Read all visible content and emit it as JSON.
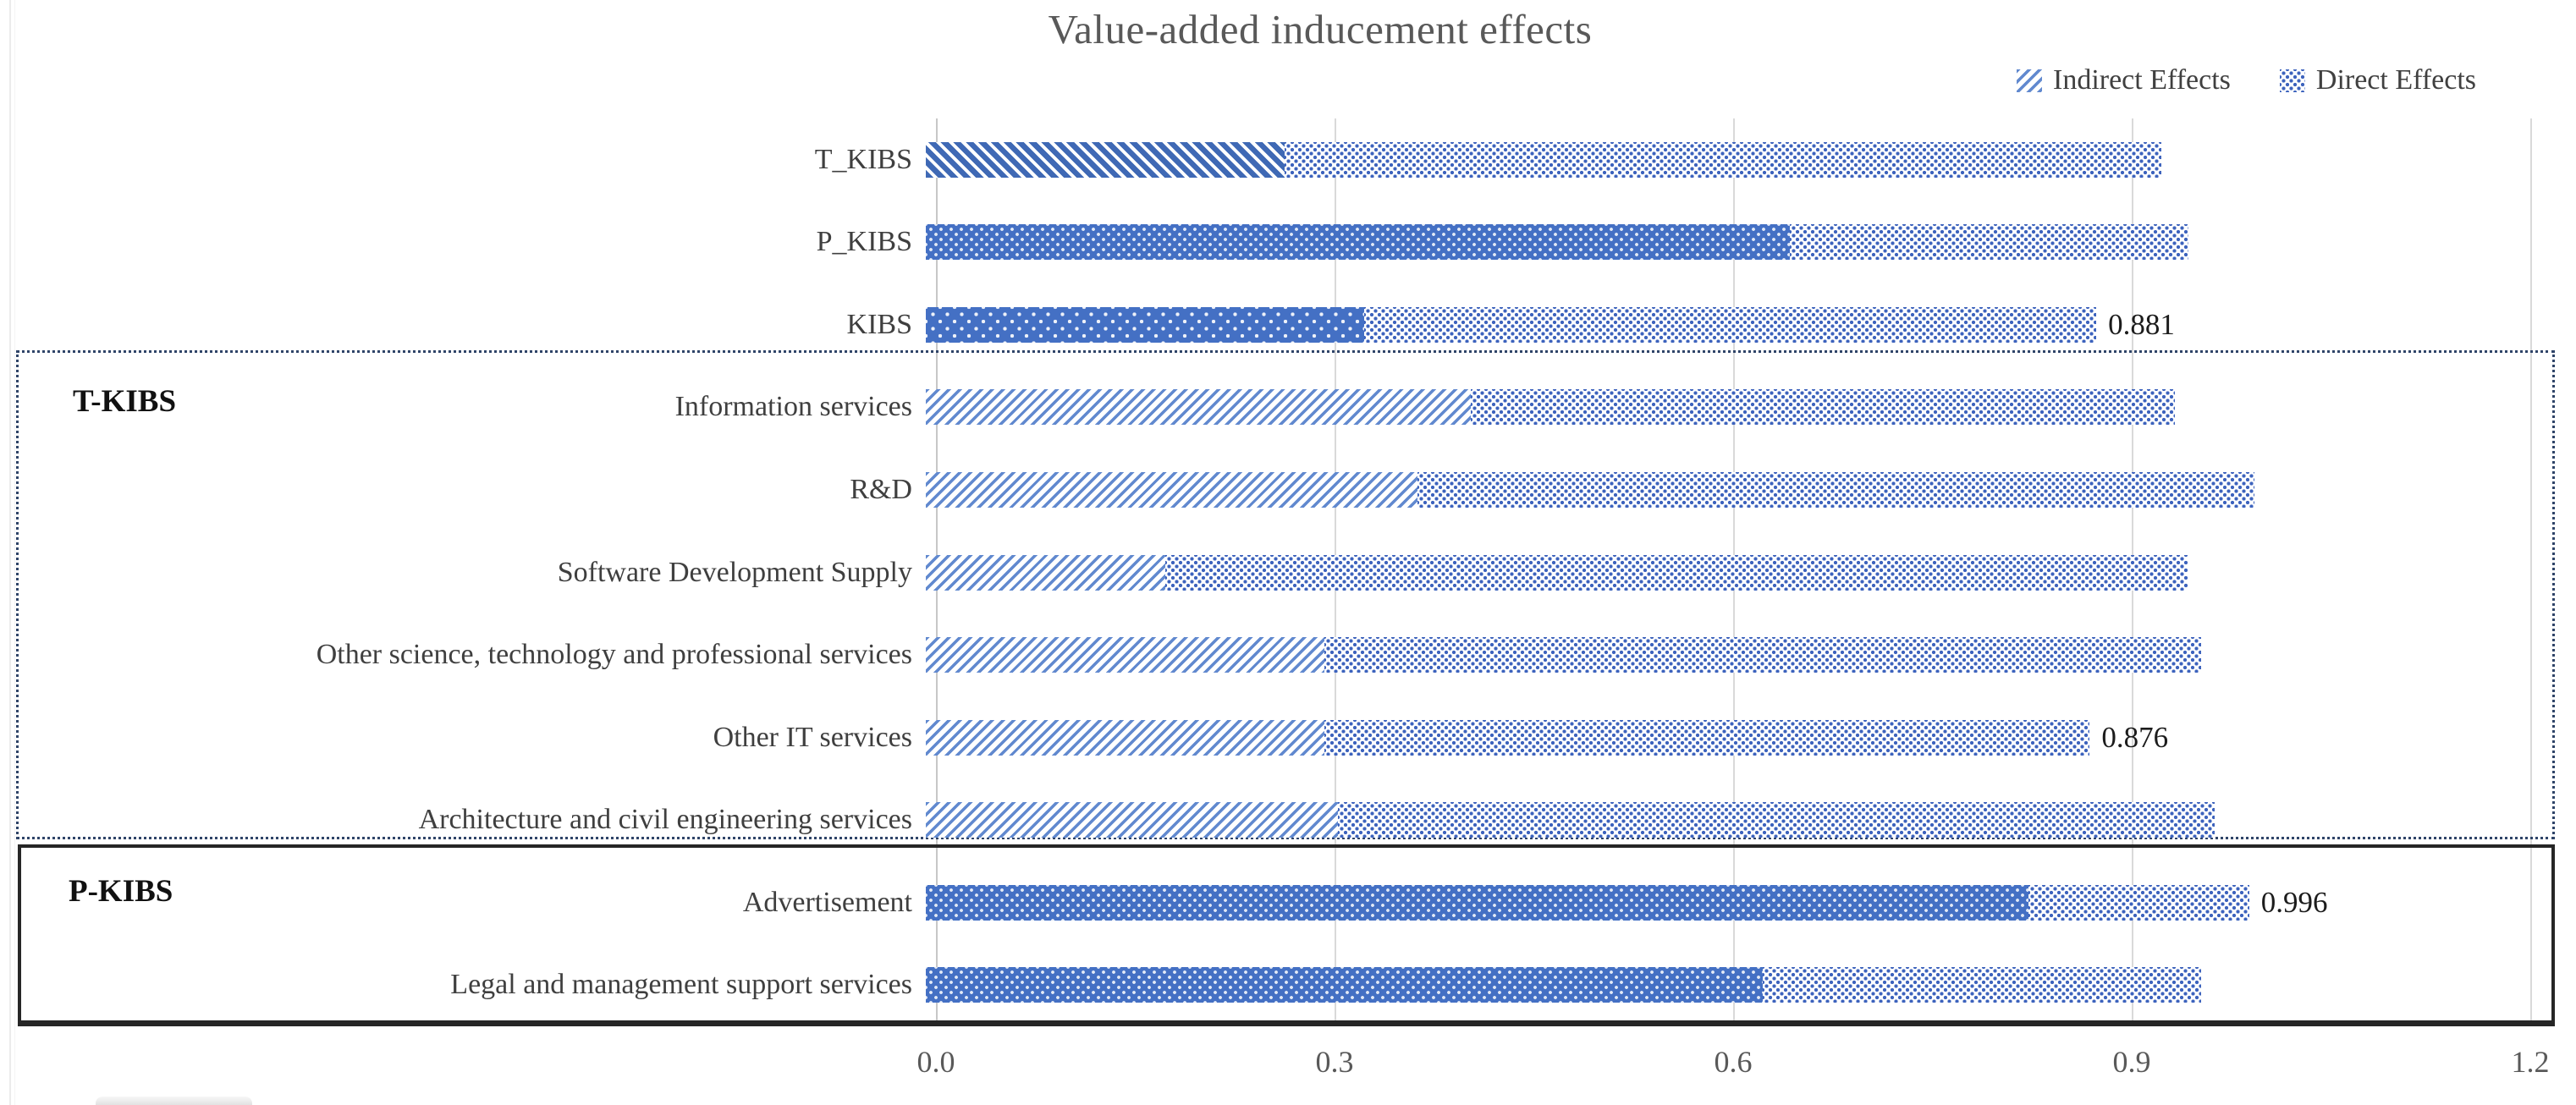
{
  "chart": {
    "title": "Value-added inducement effects"
  },
  "chart_data": {
    "type": "bar",
    "orientation": "horizontal",
    "stacked": true,
    "title": "Value-added inducement effects",
    "categories": [
      "T_KIBS",
      "P_KIBS",
      "KIBS",
      "Information services",
      "R&D",
      "Software Development Supply",
      "Other science, technology and professional services",
      "Other IT services",
      "Architecture and civil engineering services",
      "Advertisement",
      "Legal and management support services"
    ],
    "series": [
      {
        "name": "Indirect Effects",
        "values": [
          0.27,
          0.65,
          0.33,
          0.41,
          0.37,
          0.18,
          0.3,
          0.3,
          0.31,
          0.83,
          0.63
        ]
      },
      {
        "name": "Direct Effects",
        "values": [
          0.66,
          0.3,
          0.551,
          0.53,
          0.63,
          0.77,
          0.66,
          0.576,
          0.66,
          0.166,
          0.33
        ]
      }
    ],
    "totals": [
      0.93,
      0.95,
      0.881,
      0.94,
      1.0,
      0.95,
      0.96,
      0.876,
      0.97,
      0.996,
      0.96
    ],
    "total_labels": [
      "",
      "",
      "0.881",
      "",
      "",
      "",
      "",
      "0.876",
      "",
      "0.996",
      ""
    ],
    "indirect_patterns": [
      "hatch-dense-back",
      "solid-dots",
      "solid-dots-sparse",
      "hatch-light",
      "hatch-light",
      "hatch-light",
      "hatch-light",
      "hatch-light",
      "hatch-light",
      "solid-dots",
      "solid-dots"
    ],
    "xlim": [
      0,
      1.2
    ],
    "xticks": [
      0,
      0.3,
      0.6,
      0.9,
      1.2
    ],
    "xtick_labels": [
      "0.0",
      "0.3",
      "0.6",
      "0.9",
      "1.2"
    ],
    "grid": "vertical-on",
    "legend_position": "top-right",
    "group_boxes": [
      {
        "label": "T-KIBS",
        "border": "dotted",
        "categories": [
          "Information services",
          "R&D",
          "Software Development Supply",
          "Other science, technology and professional services",
          "Other IT services",
          "Architecture and civil engineering services"
        ]
      },
      {
        "label": "P-KIBS",
        "border": "solid",
        "categories": [
          "Advertisement",
          "Legal and management support services"
        ]
      }
    ],
    "colors": {
      "bar_blue": "#4472C4",
      "grid": "#D9D9D9",
      "title_text": "#595959",
      "axis_text": "#595959",
      "label_text": "#404040",
      "dotted_box_border": "#2F4468",
      "solid_box_border": "#262626"
    }
  }
}
